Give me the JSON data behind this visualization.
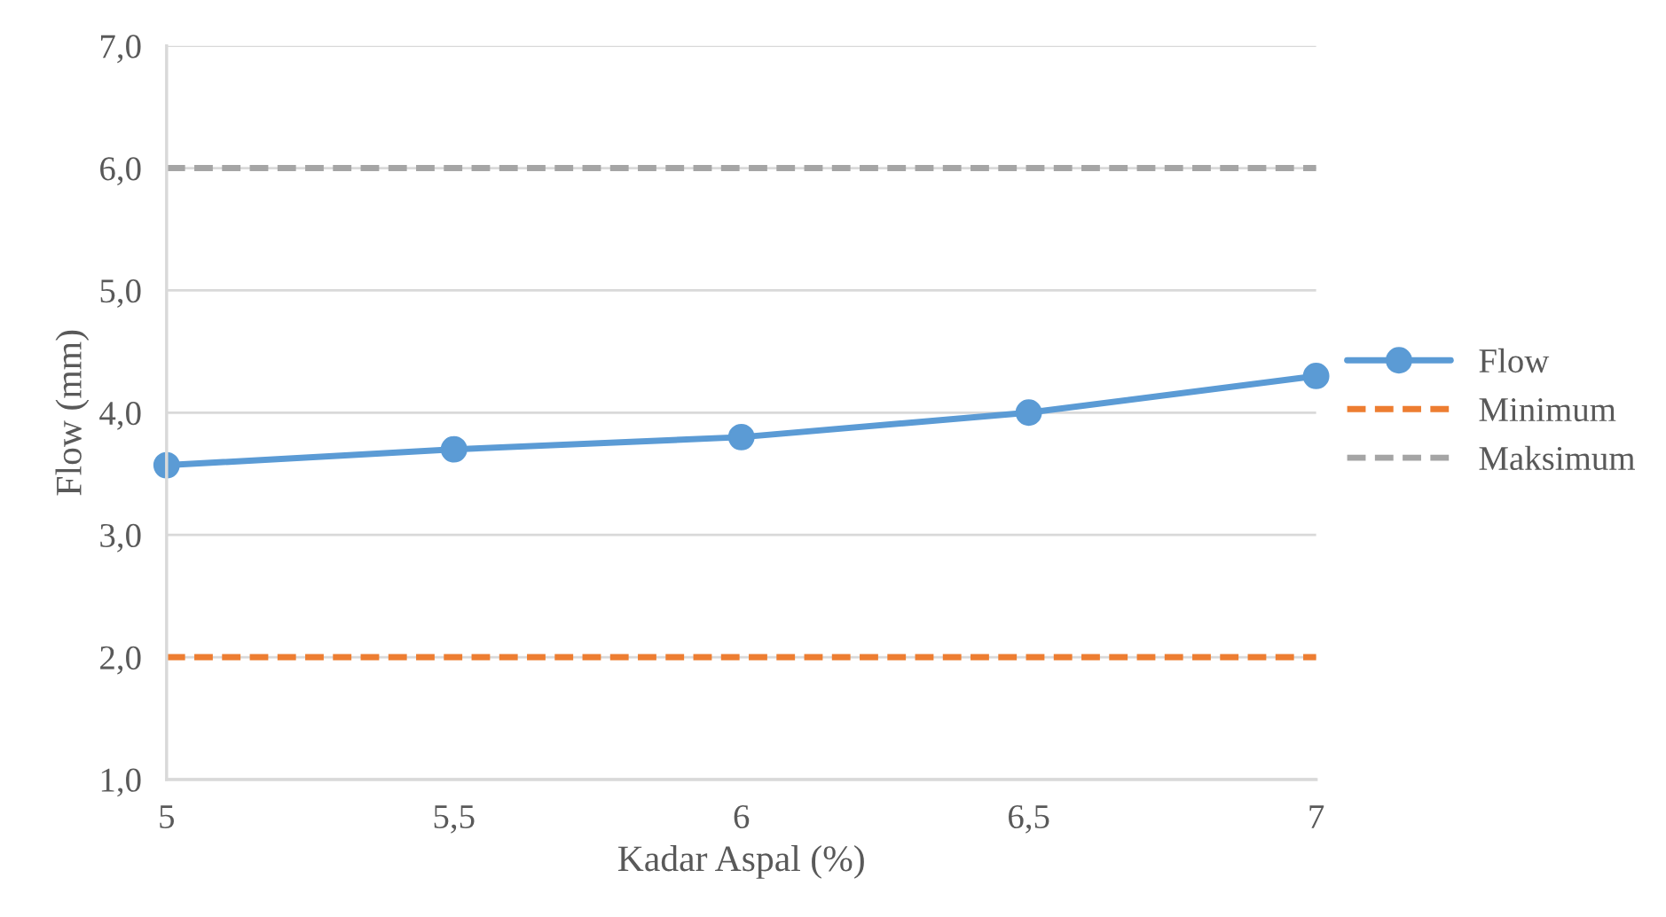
{
  "chart_data": {
    "type": "line",
    "xlabel": "Kadar Aspal (%)",
    "ylabel": "Flow (mm)",
    "x": [
      5,
      5.5,
      6,
      6.5,
      7
    ],
    "series": [
      {
        "name": "Flow",
        "color": "#5b9bd5",
        "values": [
          3.57,
          3.7,
          3.8,
          4.0,
          4.3
        ],
        "marker": "circle",
        "line_style": "solid"
      },
      {
        "name": "Minimum",
        "color": "#ed7d31",
        "values": [
          2.0,
          2.0,
          2.0,
          2.0,
          2.0
        ],
        "marker": "none",
        "line_style": "dashed"
      },
      {
        "name": "Maksimum",
        "color": "#a5a5a5",
        "values": [
          6.0,
          6.0,
          6.0,
          6.0,
          6.0
        ],
        "marker": "none",
        "line_style": "dashed"
      }
    ],
    "xlim": [
      5,
      7
    ],
    "xticks": [
      5,
      {
        "value": 5.5,
        "label": "5,5"
      },
      6,
      {
        "value": 6.5,
        "label": "6,5"
      },
      7
    ],
    "ylim": [
      1,
      7
    ],
    "yticks": [
      {
        "value": 1,
        "label": "1,0"
      },
      {
        "value": 2,
        "label": "2,0"
      },
      {
        "value": 3,
        "label": "3,0"
      },
      {
        "value": 4,
        "label": "4,0"
      },
      {
        "value": 5,
        "label": "5,0"
      },
      {
        "value": 6,
        "label": "6,0"
      },
      {
        "value": 7,
        "label": "7,0"
      }
    ],
    "grid": "y",
    "legend": "right"
  }
}
